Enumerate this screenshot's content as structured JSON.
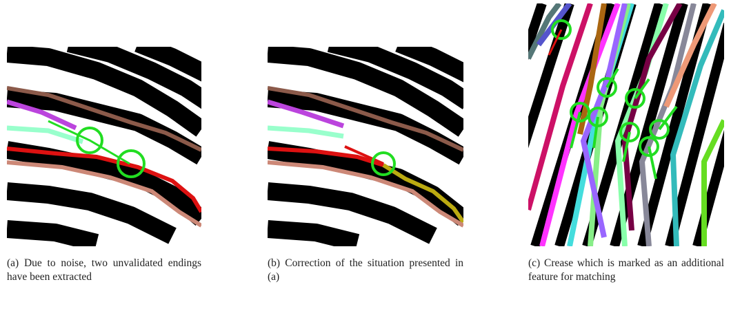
{
  "figures": [
    {
      "label": "(a)",
      "caption": "Due to noise, two unvalidated endings have been extracted"
    },
    {
      "label": "(b)",
      "caption": "Correction of the situation presented in (a)"
    },
    {
      "label": "(c)",
      "caption": "Crease which is marked as an additional feature for matching"
    }
  ]
}
